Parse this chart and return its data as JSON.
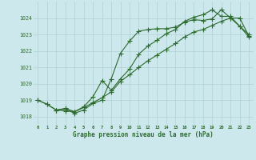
{
  "title": "Graphe pression niveau de la mer (hPa)",
  "bg_color": "#cce8ec",
  "line_color": "#2d6a2d",
  "grid_color": "#b0d0d4",
  "xlim": [
    -0.5,
    23.5
  ],
  "ylim": [
    1017.5,
    1025.0
  ],
  "yticks": [
    1018,
    1019,
    1020,
    1021,
    1022,
    1023,
    1024
  ],
  "xticks": [
    0,
    1,
    2,
    3,
    4,
    5,
    6,
    7,
    8,
    9,
    10,
    11,
    12,
    13,
    14,
    15,
    16,
    17,
    18,
    19,
    20,
    21,
    22,
    23
  ],
  "line1_x": [
    0,
    1,
    2,
    3,
    4,
    5,
    6,
    7,
    8,
    9,
    10,
    11,
    12,
    13,
    14,
    15,
    16,
    17,
    18,
    19,
    20,
    21,
    22,
    23
  ],
  "line1_y": [
    1019.0,
    1018.75,
    1018.4,
    1018.35,
    1018.3,
    1018.55,
    1018.85,
    1019.15,
    1019.5,
    1020.15,
    1020.55,
    1021.0,
    1021.4,
    1021.75,
    1022.1,
    1022.45,
    1022.85,
    1023.15,
    1023.3,
    1023.55,
    1023.8,
    1024.0,
    1024.0,
    1022.9
  ],
  "line2_x": [
    0,
    1,
    2,
    3,
    4,
    5,
    6,
    7,
    8,
    9,
    10,
    11,
    12,
    13,
    14,
    15,
    16,
    17,
    18,
    19,
    20,
    21,
    22,
    23
  ],
  "line2_y": [
    1019.0,
    1018.75,
    1018.4,
    1018.45,
    1018.2,
    1018.4,
    1018.8,
    1019.0,
    1020.3,
    1021.85,
    1022.6,
    1023.2,
    1023.3,
    1023.35,
    1023.35,
    1023.45,
    1023.75,
    1023.9,
    1023.85,
    1023.95,
    1024.5,
    1024.0,
    1023.5,
    1023.0
  ],
  "line3_x": [
    2,
    3,
    4,
    5,
    6,
    7,
    8,
    9,
    10,
    11,
    12,
    13,
    14,
    15,
    16,
    17,
    18,
    19,
    20,
    21,
    22,
    23
  ],
  "line3_y": [
    1018.4,
    1018.5,
    1018.3,
    1018.6,
    1019.2,
    1020.2,
    1019.6,
    1020.3,
    1020.9,
    1021.8,
    1022.3,
    1022.65,
    1023.05,
    1023.3,
    1023.8,
    1024.05,
    1024.2,
    1024.5,
    1024.1,
    1024.1,
    1023.5,
    1022.85
  ]
}
